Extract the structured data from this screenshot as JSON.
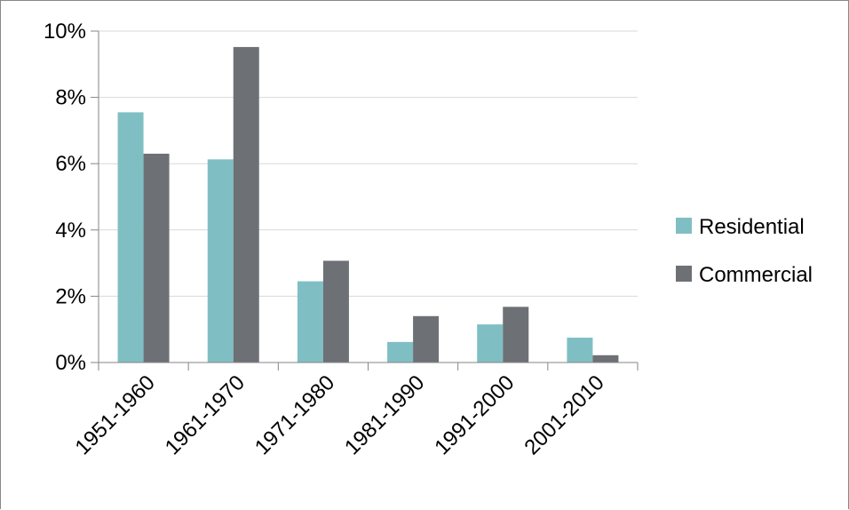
{
  "chart_data": {
    "type": "bar",
    "title": "",
    "xlabel": "",
    "ylabel": "",
    "categories": [
      "1951-1960",
      "1961-1970",
      "1971-1980",
      "1981-1990",
      "1991-2000",
      "2001-2010"
    ],
    "series": [
      {
        "name": "Residential",
        "color": "#7fbfc4",
        "values": [
          7.55,
          6.13,
          2.45,
          0.62,
          1.15,
          0.75
        ]
      },
      {
        "name": "Commercial",
        "color": "#6d7075",
        "values": [
          6.3,
          9.52,
          3.07,
          1.4,
          1.68,
          0.22
        ]
      }
    ],
    "ylim": [
      0,
      10
    ],
    "yticks": [
      0,
      2,
      4,
      6,
      8,
      10
    ],
    "ytick_labels": [
      "0%",
      "2%",
      "4%",
      "6%",
      "8%",
      "10%"
    ],
    "grid": true,
    "legend_position": "right"
  }
}
